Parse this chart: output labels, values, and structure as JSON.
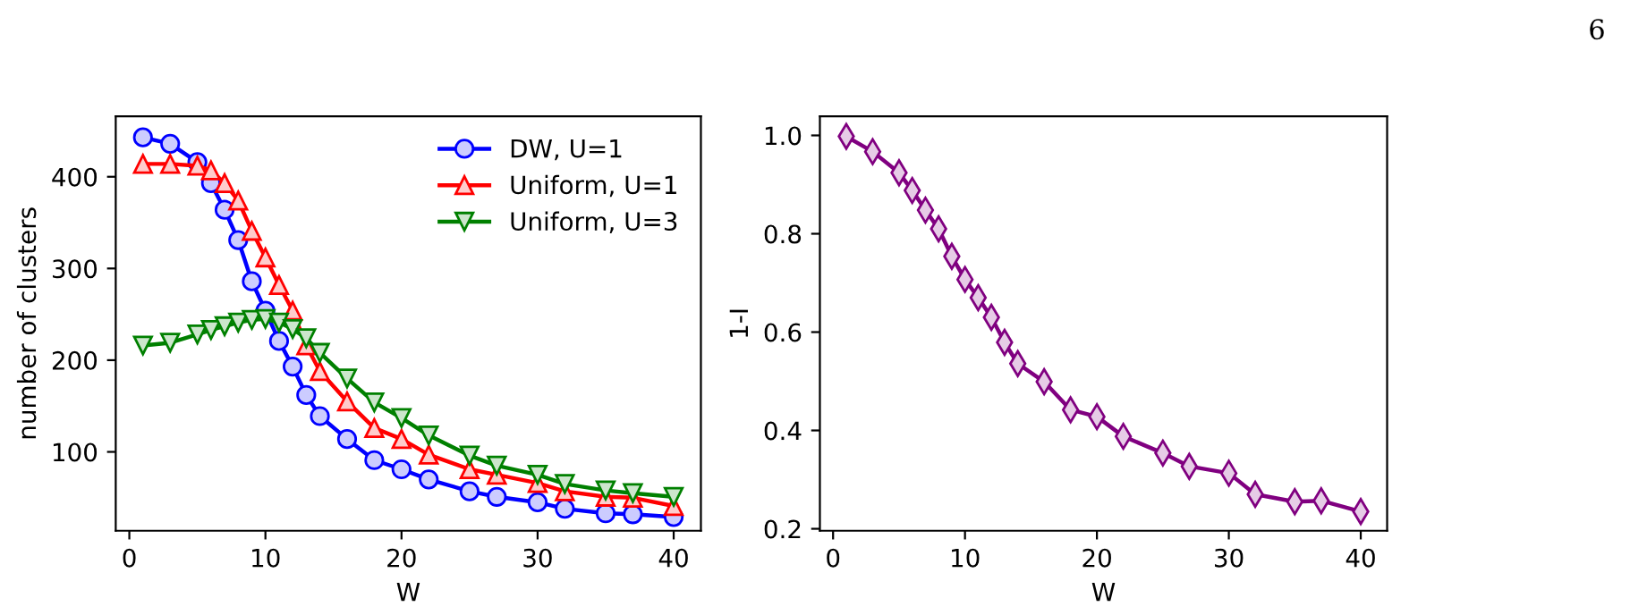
{
  "chart_data": [
    {
      "type": "line",
      "xlabel": "W",
      "ylabel": "number of clusters",
      "xlim": [
        -1,
        42
      ],
      "ylim": [
        14,
        466
      ],
      "xticks": [
        0,
        10,
        20,
        30,
        40
      ],
      "yticks": [
        100,
        200,
        300,
        400
      ],
      "legend": "top right",
      "grid": false,
      "x": [
        1,
        3,
        5,
        6,
        7,
        8,
        9,
        10,
        11,
        12,
        13,
        14,
        16,
        18,
        20,
        22,
        25,
        27,
        30,
        32,
        35,
        37,
        40
      ],
      "series": [
        {
          "name": "DW, U=1",
          "color": "#0000ff",
          "marker": "circle",
          "values": [
            443,
            436,
            416,
            393,
            364,
            331,
            286,
            254,
            221,
            193,
            162,
            139,
            114,
            91,
            81,
            70,
            57,
            51,
            45,
            38,
            33,
            32,
            29
          ]
        },
        {
          "name": "Uniform, U=1",
          "color": "#ff0000",
          "marker": "triangle",
          "values": [
            414,
            414,
            412,
            407,
            393,
            374,
            341,
            312,
            282,
            254,
            216,
            188,
            155,
            126,
            114,
            97,
            81,
            75,
            66,
            57,
            51,
            50,
            41
          ]
        },
        {
          "name": "Uniform, U=3",
          "color": "#008000",
          "marker": "triangle_down",
          "values": [
            216,
            219,
            228,
            233,
            237,
            241,
            244,
            245,
            241,
            234,
            224,
            208,
            180,
            154,
            137,
            118,
            96,
            85,
            75,
            65,
            58,
            55,
            51
          ]
        }
      ]
    },
    {
      "type": "line",
      "xlabel": "W",
      "ylabel": "1-I",
      "xlim": [
        -1,
        42
      ],
      "ylim": [
        0.196,
        1.039
      ],
      "xticks": [
        0,
        10,
        20,
        30,
        40
      ],
      "yticks": [
        {
          "value": 0.2,
          "label": "0.2"
        },
        {
          "value": 0.4,
          "label": "0.4"
        },
        {
          "value": 0.6,
          "label": "0.6"
        },
        {
          "value": 0.8,
          "label": "0.8"
        },
        {
          "value": 1.0,
          "label": "1.0"
        }
      ],
      "grid": false,
      "annotations": [
        "6"
      ],
      "x": [
        1,
        3,
        5,
        6,
        7,
        8,
        9,
        10,
        11,
        12,
        13,
        14,
        16,
        18,
        20,
        22,
        25,
        27,
        30,
        32,
        35,
        37,
        40
      ],
      "series": [
        {
          "color": "#800080",
          "marker": "diamond",
          "values": [
            0.998,
            0.967,
            0.924,
            0.888,
            0.848,
            0.81,
            0.754,
            0.707,
            0.67,
            0.63,
            0.579,
            0.536,
            0.499,
            0.442,
            0.428,
            0.388,
            0.354,
            0.327,
            0.313,
            0.27,
            0.255,
            0.257,
            0.235
          ]
        }
      ]
    }
  ]
}
